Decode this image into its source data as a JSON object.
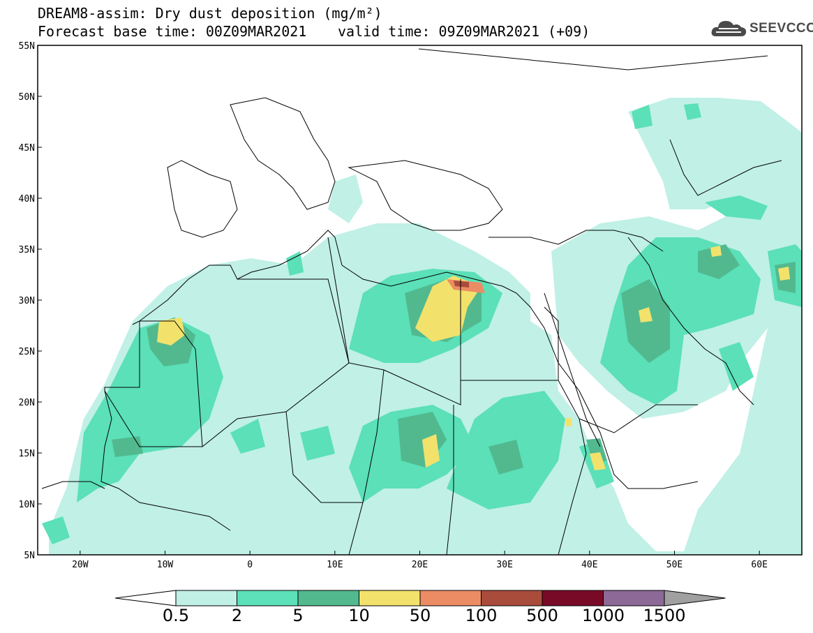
{
  "title_line1": "DREAM8-assim: Dry dust deposition (mg/m²)",
  "title_line2_base": "Forecast base time: 00Z09MAR2021",
  "title_line2_valid": "valid time: 09Z09MAR2021 (+09)",
  "logo_text": "SEEVCCC",
  "map": {
    "lon_range": [
      -25,
      65
    ],
    "lat_range": [
      5,
      55
    ],
    "lat_labels": [
      "55N",
      "50N",
      "45N",
      "40N",
      "35N",
      "30N",
      "25N",
      "20N",
      "15N",
      "10N",
      "5N"
    ],
    "lon_labels": [
      "20W",
      "10W",
      "0",
      "10E",
      "20E",
      "30E",
      "40E",
      "50E",
      "60E"
    ]
  },
  "colorbar": {
    "labels": [
      "0.5",
      "2",
      "5",
      "10",
      "50",
      "100",
      "500",
      "1000",
      "1500"
    ],
    "colors": [
      "#c0f0e6",
      "#5be0b8",
      "#52b98f",
      "#f2e26c",
      "#ec8c64",
      "#a94c3c",
      "#780a28",
      "#8c6996",
      "#a0a0a0"
    ]
  }
}
